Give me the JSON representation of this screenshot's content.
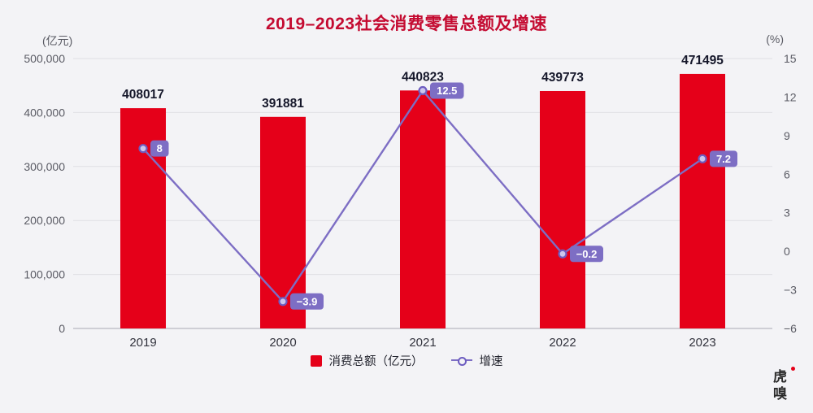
{
  "title": "2019–2023社会消费零售总额及增速",
  "left_axis_unit_label": "(亿元)",
  "right_axis_unit_label": "(%)",
  "legend": {
    "bars": "消费总额（亿元）",
    "line": "增速"
  },
  "logo_text": "虎嗅",
  "colors": {
    "title": "#c40b31",
    "bar": "#e50019",
    "line": "#7d6ec4",
    "marker_stroke": "#6c5cc0",
    "marker_fill": "#cdc6ec",
    "badge": "#7d6ec4",
    "badge_text": "#ffffff",
    "grid": "#dfdfe4",
    "baseline": "#c2c2ca",
    "tick_text": "#5a5b64",
    "category_text": "#33343e",
    "bar_label_text": "#15172a",
    "logo_dot": "#e50019"
  },
  "chart_data": {
    "type": "bar+line combo",
    "title": "2019–2023社会消费零售总额及增速",
    "categories": [
      "2019",
      "2020",
      "2021",
      "2022",
      "2023"
    ],
    "series": [
      {
        "name": "消费总额（亿元）",
        "type": "bar",
        "axis": "left",
        "values": [
          408017,
          391881,
          440823,
          439773,
          471495
        ],
        "labels": [
          "408017",
          "391881",
          "440823",
          "439773",
          "471495"
        ]
      },
      {
        "name": "增速",
        "type": "line",
        "axis": "right",
        "values": [
          8,
          -3.9,
          12.5,
          -0.2,
          7.2
        ],
        "labels": [
          "8",
          "−3.9",
          "12.5",
          "−0.2",
          "7.2"
        ]
      }
    ],
    "left_axis": {
      "unit": "(亿元)",
      "min": 0,
      "max": 500000,
      "step": 100000
    },
    "right_axis": {
      "unit": "(%)",
      "min": -6,
      "max": 15,
      "step": 3
    },
    "grid": true,
    "legend_position": "bottom"
  }
}
